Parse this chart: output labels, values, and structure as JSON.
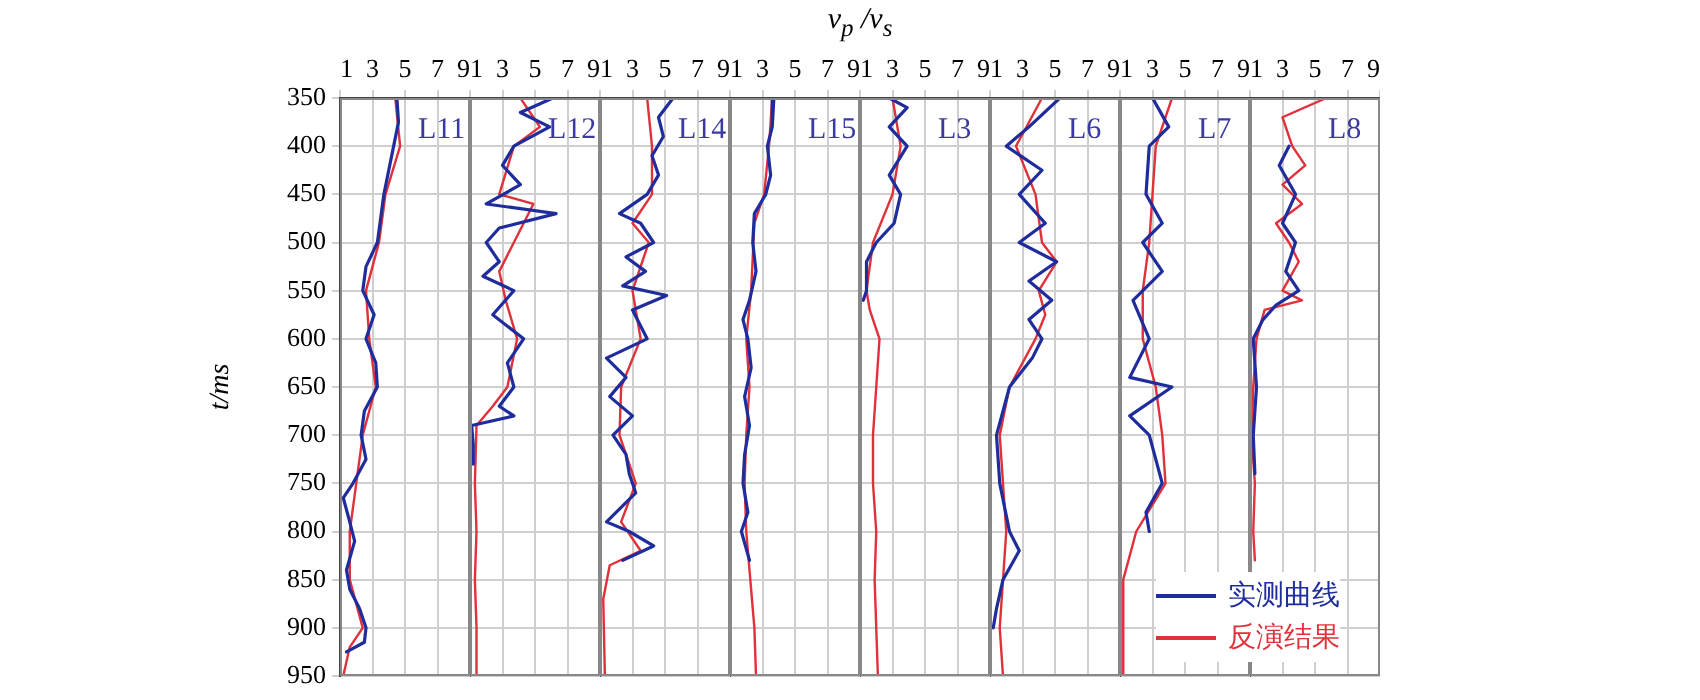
{
  "chart_data": [
    {
      "type": "line",
      "ylabel": "t/ms",
      "annotations": [
        "L11"
      ],
      "xlim": [
        1,
        9
      ],
      "xticks": [
        1,
        3,
        5,
        7,
        9
      ],
      "ylim": [
        950,
        350
      ],
      "yticks": [
        350,
        400,
        450,
        500,
        550,
        600,
        650,
        700,
        750,
        800,
        850,
        900,
        950
      ],
      "grid": true,
      "marker": "none",
      "line_style": "solid",
      "series": [
        {
          "color": "#1f2d9c",
          "x": [
            4.5,
            4.6,
            4.3,
            4.0,
            3.7,
            3.5,
            3.3,
            2.6,
            2.4,
            3.1,
            2.6,
            3.2,
            3.3,
            2.5,
            2.3,
            2.6,
            1.8,
            1.2,
            1.6,
            1.9,
            1.4,
            1.6,
            2.2,
            2.6,
            2.5,
            1.4
          ],
          "values": [
            350,
            375,
            400,
            425,
            450,
            475,
            500,
            525,
            550,
            575,
            600,
            625,
            650,
            675,
            700,
            725,
            750,
            765,
            790,
            810,
            840,
            860,
            880,
            900,
            915,
            925
          ]
        },
        {
          "color": "#e0303a",
          "x": [
            4.4,
            4.7,
            3.8,
            3.4,
            2.6,
            2.8,
            3.2,
            2.4,
            2.0,
            1.6,
            1.6,
            2.4,
            1.6,
            1.2
          ],
          "values": [
            350,
            400,
            450,
            500,
            550,
            600,
            650,
            700,
            750,
            800,
            850,
            900,
            920,
            950
          ]
        }
      ]
    },
    {
      "type": "line",
      "annotations": [
        "L12"
      ],
      "xlim": [
        1,
        9
      ],
      "xticks": [
        1,
        3,
        5,
        7,
        9
      ],
      "ylim": [
        950,
        350
      ],
      "yticks": [
        350,
        400,
        450,
        500,
        550,
        600,
        650,
        700,
        750,
        800,
        850,
        900,
        950
      ],
      "tick_labels": "x",
      "grid": true,
      "marker": "none",
      "line_style": "solid",
      "series": [
        {
          "color": "#1f2d9c",
          "x": [
            6.1,
            4.1,
            5.9,
            3.7,
            3.0,
            4.1,
            2.0,
            6.3,
            2.8,
            2.0,
            2.8,
            1.8,
            3.7,
            2.4,
            4.3,
            3.3,
            3.7,
            2.8,
            3.7,
            1.1,
            1.2,
            1.2
          ],
          "values": [
            350,
            365,
            380,
            400,
            420,
            440,
            460,
            470,
            485,
            500,
            520,
            535,
            550,
            575,
            600,
            625,
            650,
            670,
            680,
            690,
            710,
            730
          ]
        },
        {
          "color": "#e0303a",
          "x": [
            4.1,
            5.3,
            3.7,
            2.8,
            4.9,
            3.7,
            2.8,
            3.2,
            3.9,
            3.3,
            2.4,
            1.4,
            1.3,
            1.4,
            1.3,
            1.4,
            1.4
          ],
          "values": [
            350,
            380,
            400,
            450,
            460,
            500,
            530,
            560,
            600,
            650,
            670,
            690,
            750,
            800,
            850,
            900,
            950
          ]
        }
      ]
    },
    {
      "type": "line",
      "annotations": [
        "L14"
      ],
      "xlim": [
        1,
        9
      ],
      "xticks": [
        1,
        3,
        5,
        7,
        9
      ],
      "ylim": [
        950,
        350
      ],
      "yticks": [
        350,
        400,
        450,
        500,
        550,
        600,
        650,
        700,
        750,
        800,
        850,
        900,
        950
      ],
      "tick_labels": "x",
      "grid": true,
      "marker": "none",
      "line_style": "solid",
      "series": [
        {
          "color": "#1f2d9c",
          "x": [
            5.5,
            4.6,
            4.9,
            4.2,
            4.6,
            3.9,
            2.2,
            3.5,
            4.3,
            2.6,
            3.8,
            2.4,
            5.1,
            3.0,
            3.9,
            1.4,
            2.6,
            1.6,
            3.0,
            1.8,
            2.6,
            2.8,
            3.2,
            1.4,
            2.8,
            4.3,
            2.4
          ],
          "values": [
            350,
            370,
            390,
            410,
            430,
            450,
            470,
            480,
            500,
            515,
            530,
            545,
            555,
            570,
            600,
            620,
            640,
            660,
            680,
            700,
            720,
            740,
            760,
            790,
            800,
            815,
            830
          ]
        },
        {
          "color": "#e0303a",
          "x": [
            3.9,
            4.2,
            4.2,
            3.0,
            4.0,
            3.0,
            3.5,
            2.3,
            2.2,
            3.2,
            2.3,
            3.5,
            1.6,
            1.2,
            1.3
          ],
          "values": [
            350,
            400,
            450,
            480,
            500,
            550,
            600,
            650,
            700,
            750,
            790,
            820,
            835,
            870,
            950
          ]
        }
      ]
    },
    {
      "type": "line",
      "annotations": [
        "L15"
      ],
      "xlim": [
        1,
        9
      ],
      "xticks": [
        1,
        3,
        5,
        7,
        9
      ],
      "ylim": [
        950,
        350
      ],
      "yticks": [
        350,
        400,
        450,
        500,
        550,
        600,
        650,
        700,
        750,
        800,
        850,
        900,
        950
      ],
      "tick_labels": "x",
      "grid": true,
      "marker": "none",
      "line_style": "solid",
      "series": [
        {
          "color": "#1f2d9c",
          "x": [
            3.7,
            3.6,
            3.3,
            3.5,
            3.2,
            2.5,
            2.4,
            2.6,
            2.2,
            1.8,
            2.1,
            2.3,
            1.9,
            2.2,
            1.9,
            1.8,
            2.1,
            1.7,
            2.2
          ],
          "values": [
            350,
            380,
            400,
            430,
            450,
            470,
            500,
            530,
            560,
            580,
            600,
            630,
            660,
            690,
            720,
            750,
            780,
            800,
            830
          ]
        },
        {
          "color": "#e0303a",
          "x": [
            3.6,
            3.4,
            3.1,
            2.5,
            2.3,
            2.0,
            2.2,
            2.0,
            1.9,
            2.0,
            2.2,
            2.5,
            2.6
          ],
          "values": [
            350,
            400,
            450,
            480,
            550,
            600,
            650,
            700,
            750,
            800,
            840,
            900,
            950
          ]
        }
      ]
    },
    {
      "type": "line",
      "xlabel": "v$_{p}$ /v$_{s}$",
      "annotations": [
        "L3"
      ],
      "xlim": [
        1,
        9
      ],
      "xticks": [
        1,
        3,
        5,
        7,
        9
      ],
      "ylim": [
        950,
        350
      ],
      "yticks": [
        350,
        400,
        450,
        500,
        550,
        600,
        650,
        700,
        750,
        800,
        850,
        900,
        950
      ],
      "tick_labels": "x",
      "grid": true,
      "marker": "none",
      "line_style": "solid",
      "series": [
        {
          "color": "#1f2d9c",
          "x": [
            2.8,
            3.9,
            2.8,
            3.9,
            2.8,
            3.5,
            3.1,
            2.0,
            1.4,
            1.4,
            1.2
          ],
          "values": [
            350,
            360,
            380,
            400,
            430,
            450,
            480,
            500,
            520,
            550,
            560
          ]
        },
        {
          "color": "#e0303a",
          "x": [
            3.0,
            3.5,
            3.0,
            1.8,
            1.4,
            1.6,
            2.2,
            2.0,
            1.8,
            1.8,
            2.0,
            1.9,
            2.1
          ],
          "values": [
            350,
            400,
            450,
            500,
            550,
            570,
            600,
            650,
            700,
            750,
            800,
            850,
            950
          ]
        }
      ]
    },
    {
      "type": "line",
      "annotations": [
        "L6"
      ],
      "xlim": [
        1,
        9
      ],
      "xticks": [
        1,
        3,
        5,
        7,
        9
      ],
      "ylim": [
        950,
        350
      ],
      "yticks": [
        350,
        400,
        450,
        500,
        550,
        600,
        650,
        700,
        750,
        800,
        850,
        900,
        950
      ],
      "tick_labels": "x",
      "grid": true,
      "marker": "none",
      "line_style": "solid",
      "series": [
        {
          "color": "#1f2d9c",
          "x": [
            5.3,
            3.4,
            2.0,
            4.2,
            2.8,
            4.4,
            2.8,
            5.1,
            3.4,
            4.8,
            3.4,
            4.2,
            3.6,
            2.2,
            1.4,
            1.6,
            2.2,
            2.8,
            1.8,
            1.4,
            1.2
          ],
          "values": [
            350,
            380,
            400,
            425,
            450,
            480,
            500,
            520,
            540,
            560,
            580,
            600,
            620,
            650,
            700,
            750,
            800,
            820,
            850,
            880,
            900
          ]
        },
        {
          "color": "#e0303a",
          "x": [
            4.2,
            2.6,
            3.8,
            4.2,
            5.1,
            4.0,
            4.4,
            3.8,
            2.2,
            1.6,
            1.8,
            2.0,
            1.8,
            1.6,
            1.8
          ],
          "values": [
            350,
            400,
            450,
            500,
            520,
            550,
            575,
            600,
            650,
            700,
            750,
            800,
            850,
            900,
            950
          ]
        }
      ]
    },
    {
      "type": "line",
      "annotations": [
        "L7"
      ],
      "legend": "bottom right",
      "xlim": [
        1,
        9
      ],
      "xticks": [
        1,
        3,
        5,
        7,
        9
      ],
      "ylim": [
        950,
        350
      ],
      "yticks": [
        350,
        400,
        450,
        500,
        550,
        600,
        650,
        700,
        750,
        800,
        850,
        900,
        950
      ],
      "tick_labels": "x",
      "grid": true,
      "marker": "none",
      "line_style": "solid",
      "series": [
        {
          "name": "实测曲线",
          "color": "#1f2d9c",
          "x": [
            3.0,
            4.0,
            2.8,
            2.6,
            3.6,
            2.4,
            3.6,
            1.8,
            2.8,
            1.6,
            4.2,
            1.6,
            2.8,
            3.6,
            2.6,
            2.8
          ],
          "values": [
            350,
            380,
            400,
            450,
            480,
            500,
            530,
            560,
            600,
            640,
            650,
            680,
            700,
            750,
            780,
            800
          ]
        },
        {
          "name": "反演结果",
          "color": "#e0303a",
          "x": [
            4.2,
            3.2,
            3.0,
            2.8,
            2.4,
            2.4,
            3.2,
            3.6,
            3.8,
            2.0,
            1.2,
            1.2
          ],
          "values": [
            350,
            400,
            450,
            500,
            550,
            600,
            650,
            700,
            750,
            800,
            850,
            950
          ]
        }
      ]
    },
    {
      "type": "line",
      "annotations": [
        "L8"
      ],
      "xlim": [
        1,
        9
      ],
      "xticks": [
        1,
        3,
        5,
        7,
        9
      ],
      "ylim": [
        950,
        350
      ],
      "yticks": [
        350,
        400,
        450,
        500,
        550,
        600,
        650,
        700,
        750,
        800,
        850,
        900,
        950
      ],
      "tick_labels": "x",
      "grid": true,
      "marker": "none",
      "line_style": "solid",
      "series": [
        {
          "color": "#1f2d9c",
          "x": [
            3.4,
            2.8,
            3.8,
            3.0,
            3.8,
            3.2,
            4.0,
            2.6,
            1.8,
            1.2,
            1.4,
            1.2,
            1.3
          ],
          "values": [
            400,
            420,
            450,
            480,
            500,
            530,
            550,
            565,
            580,
            600,
            650,
            700,
            740
          ]
        },
        {
          "color": "#e0303a",
          "x": [
            5.7,
            3.0,
            3.6,
            4.4,
            3.0,
            4.2,
            2.6,
            3.4,
            4.0,
            3.0,
            4.2,
            1.9,
            1.4,
            1.2,
            1.1,
            1.3,
            1.2,
            1.3
          ],
          "values": [
            350,
            370,
            400,
            420,
            440,
            460,
            480,
            500,
            520,
            550,
            560,
            570,
            600,
            650,
            700,
            750,
            800,
            830
          ]
        }
      ]
    }
  ]
}
